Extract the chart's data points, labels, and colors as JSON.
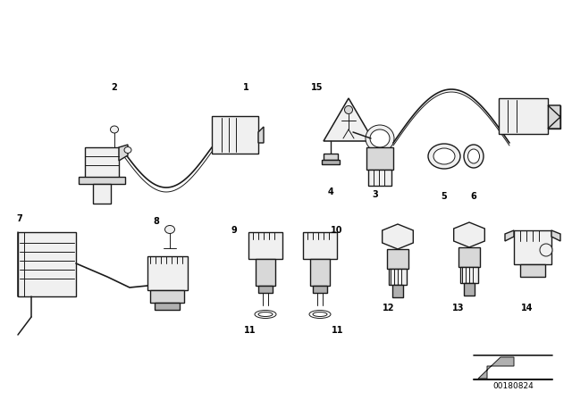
{
  "bg_color": "#ffffff",
  "part_number": "00180824",
  "fig_width": 6.4,
  "fig_height": 4.48,
  "dpi": 100,
  "line_color": "#1a1a1a",
  "fill_light": "#f0f0f0",
  "fill_mid": "#d8d8d8",
  "fill_dark": "#b0b0b0"
}
